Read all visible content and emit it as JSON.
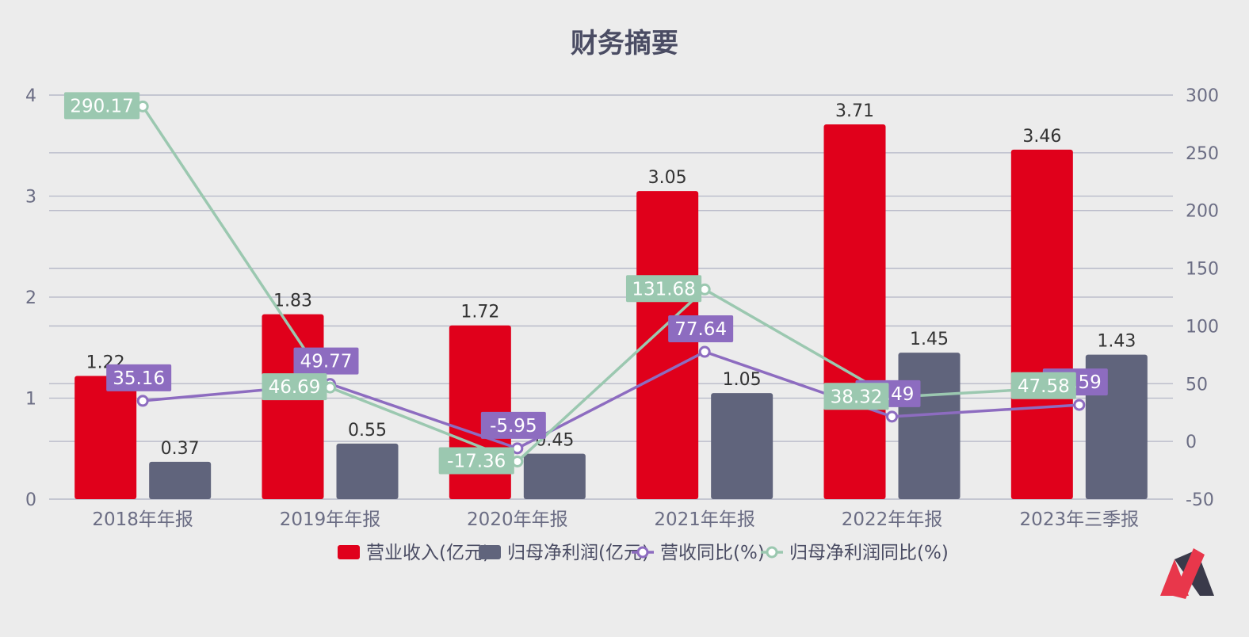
{
  "chart_data": {
    "type": "bar",
    "title": "财务摘要",
    "categories": [
      "2018年年报",
      "2019年年报",
      "2020年年报",
      "2021年年报",
      "2022年年报",
      "2023年三季报"
    ],
    "y_left": {
      "min": 0,
      "max": 4,
      "ticks": [
        0,
        1,
        2,
        3,
        4
      ]
    },
    "y_right": {
      "min": -50,
      "max": 300,
      "ticks": [
        -50,
        0,
        50,
        100,
        150,
        200,
        250,
        300
      ]
    },
    "grid": true,
    "legend_position": "bottom-center",
    "series": [
      {
        "name": "营业收入(亿元)",
        "type": "bar",
        "axis": "left",
        "color": "#e0001b",
        "values": [
          1.22,
          1.83,
          1.72,
          3.05,
          3.71,
          3.46
        ]
      },
      {
        "name": "归母净利润(亿元)",
        "type": "bar",
        "axis": "left",
        "color": "#60647c",
        "values": [
          0.37,
          0.55,
          0.45,
          1.05,
          1.45,
          1.43
        ]
      },
      {
        "name": "营收同比(%)",
        "type": "line",
        "axis": "right",
        "color": "#8d6cc0",
        "values": [
          35.16,
          49.77,
          -5.95,
          77.64,
          21.49,
          31.59
        ]
      },
      {
        "name": "归母净利润同比(%)",
        "type": "line",
        "axis": "right",
        "color": "#9bc8b0",
        "values": [
          290.17,
          46.69,
          -17.36,
          131.68,
          38.32,
          47.58
        ]
      }
    ]
  },
  "logo": {
    "name": "brand-logo",
    "colors": [
      "#e8374b",
      "#3a3a4a"
    ]
  }
}
